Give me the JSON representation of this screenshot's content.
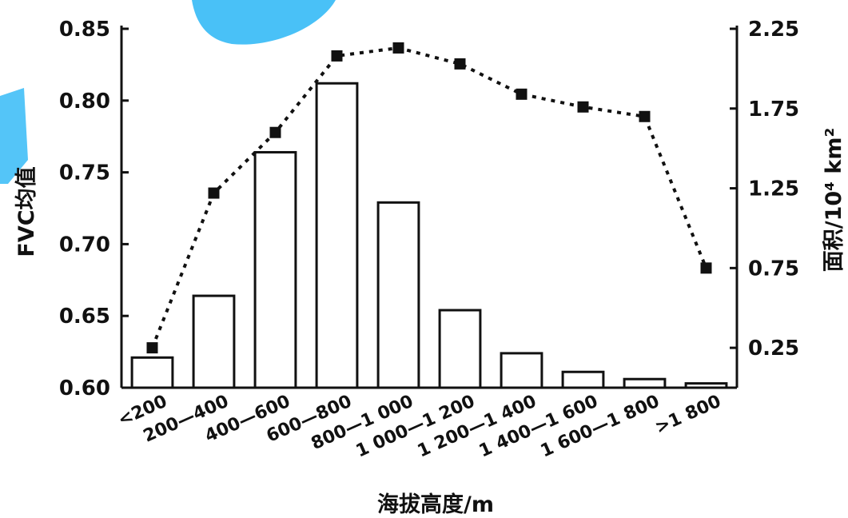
{
  "chart_data": {
    "type": "bar+line",
    "categories": [
      "<200",
      "200—400",
      "400—600",
      "600—800",
      "800—1 000",
      "1 000—1 200",
      "1 200—1 400",
      "1 400—1 600",
      "1 600—1 800",
      ">1 800"
    ],
    "bar_series": {
      "axis": "left",
      "values": [
        0.621,
        0.664,
        0.764,
        0.812,
        0.729,
        0.654,
        0.624,
        0.611,
        0.606,
        0.603
      ]
    },
    "line_series": {
      "axis": "right",
      "style": "dotted",
      "marker": "square",
      "values": [
        0.25,
        1.22,
        1.6,
        2.08,
        2.13,
        2.03,
        1.84,
        1.76,
        1.7,
        0.75
      ]
    },
    "left_axis": {
      "label": "FVC均值",
      "ylim": [
        0.6,
        0.85
      ],
      "ticks": [
        "0.60",
        "0.65",
        "0.70",
        "0.75",
        "0.80",
        "0.85"
      ]
    },
    "right_axis": {
      "label": "面积/10⁴ km²",
      "ylim": [
        0,
        2.25
      ],
      "ticks": [
        "0.25",
        "0.75",
        "1.25",
        "1.75",
        "2.25"
      ]
    },
    "xlabel": "海拔高度/m",
    "grid": false,
    "colors": {
      "bar_fill": "#ffffff",
      "bar_stroke": "#111111",
      "line": "#111111",
      "watermark": "#29b6f6"
    }
  }
}
